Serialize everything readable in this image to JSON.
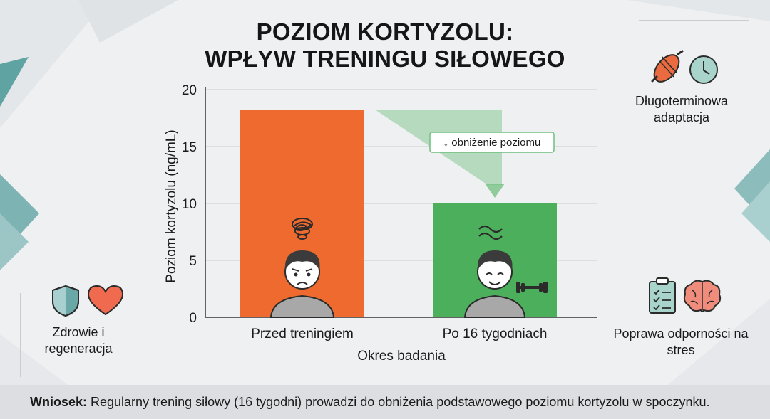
{
  "title": {
    "line1": "POZIOM KORTYZOLU:",
    "line2": "WPŁYW TRENINGU SIŁOWEGO"
  },
  "chart_data": {
    "type": "bar",
    "categories": [
      "Przed treningiem",
      "Po 16 tygodniach"
    ],
    "values": [
      18.2,
      10.0
    ],
    "colors": [
      "#ef6a2e",
      "#4caf5c"
    ],
    "xlabel": "Okres badania",
    "ylabel": "Poziom kortyzolu (ng/mL)",
    "ylim": [
      0,
      20
    ],
    "yticks": [
      0,
      5,
      10,
      15,
      20
    ],
    "grid": true,
    "annotation": "↓ obniżenie poziomu"
  },
  "side_panels": {
    "top_right": "Długoterminowa adaptacja",
    "bottom_left": "Zdrowie i regeneracja",
    "bottom_right": "Poprawa odporności na stres"
  },
  "icons": {
    "top_right": [
      "muscle-icon",
      "clock-icon"
    ],
    "bottom_left": [
      "shield-icon",
      "heart-icon"
    ],
    "bottom_right": [
      "checklist-icon",
      "brain-icon"
    ],
    "bars": [
      "stressed-person-icon",
      "relaxed-person-icon"
    ]
  },
  "footer": {
    "label": "Wniosek:",
    "text": " Regularny trening siłowy (16 tygodni) prowadzi do obniżenia podstawowego poziomu kortyzolu w spoczynku."
  }
}
